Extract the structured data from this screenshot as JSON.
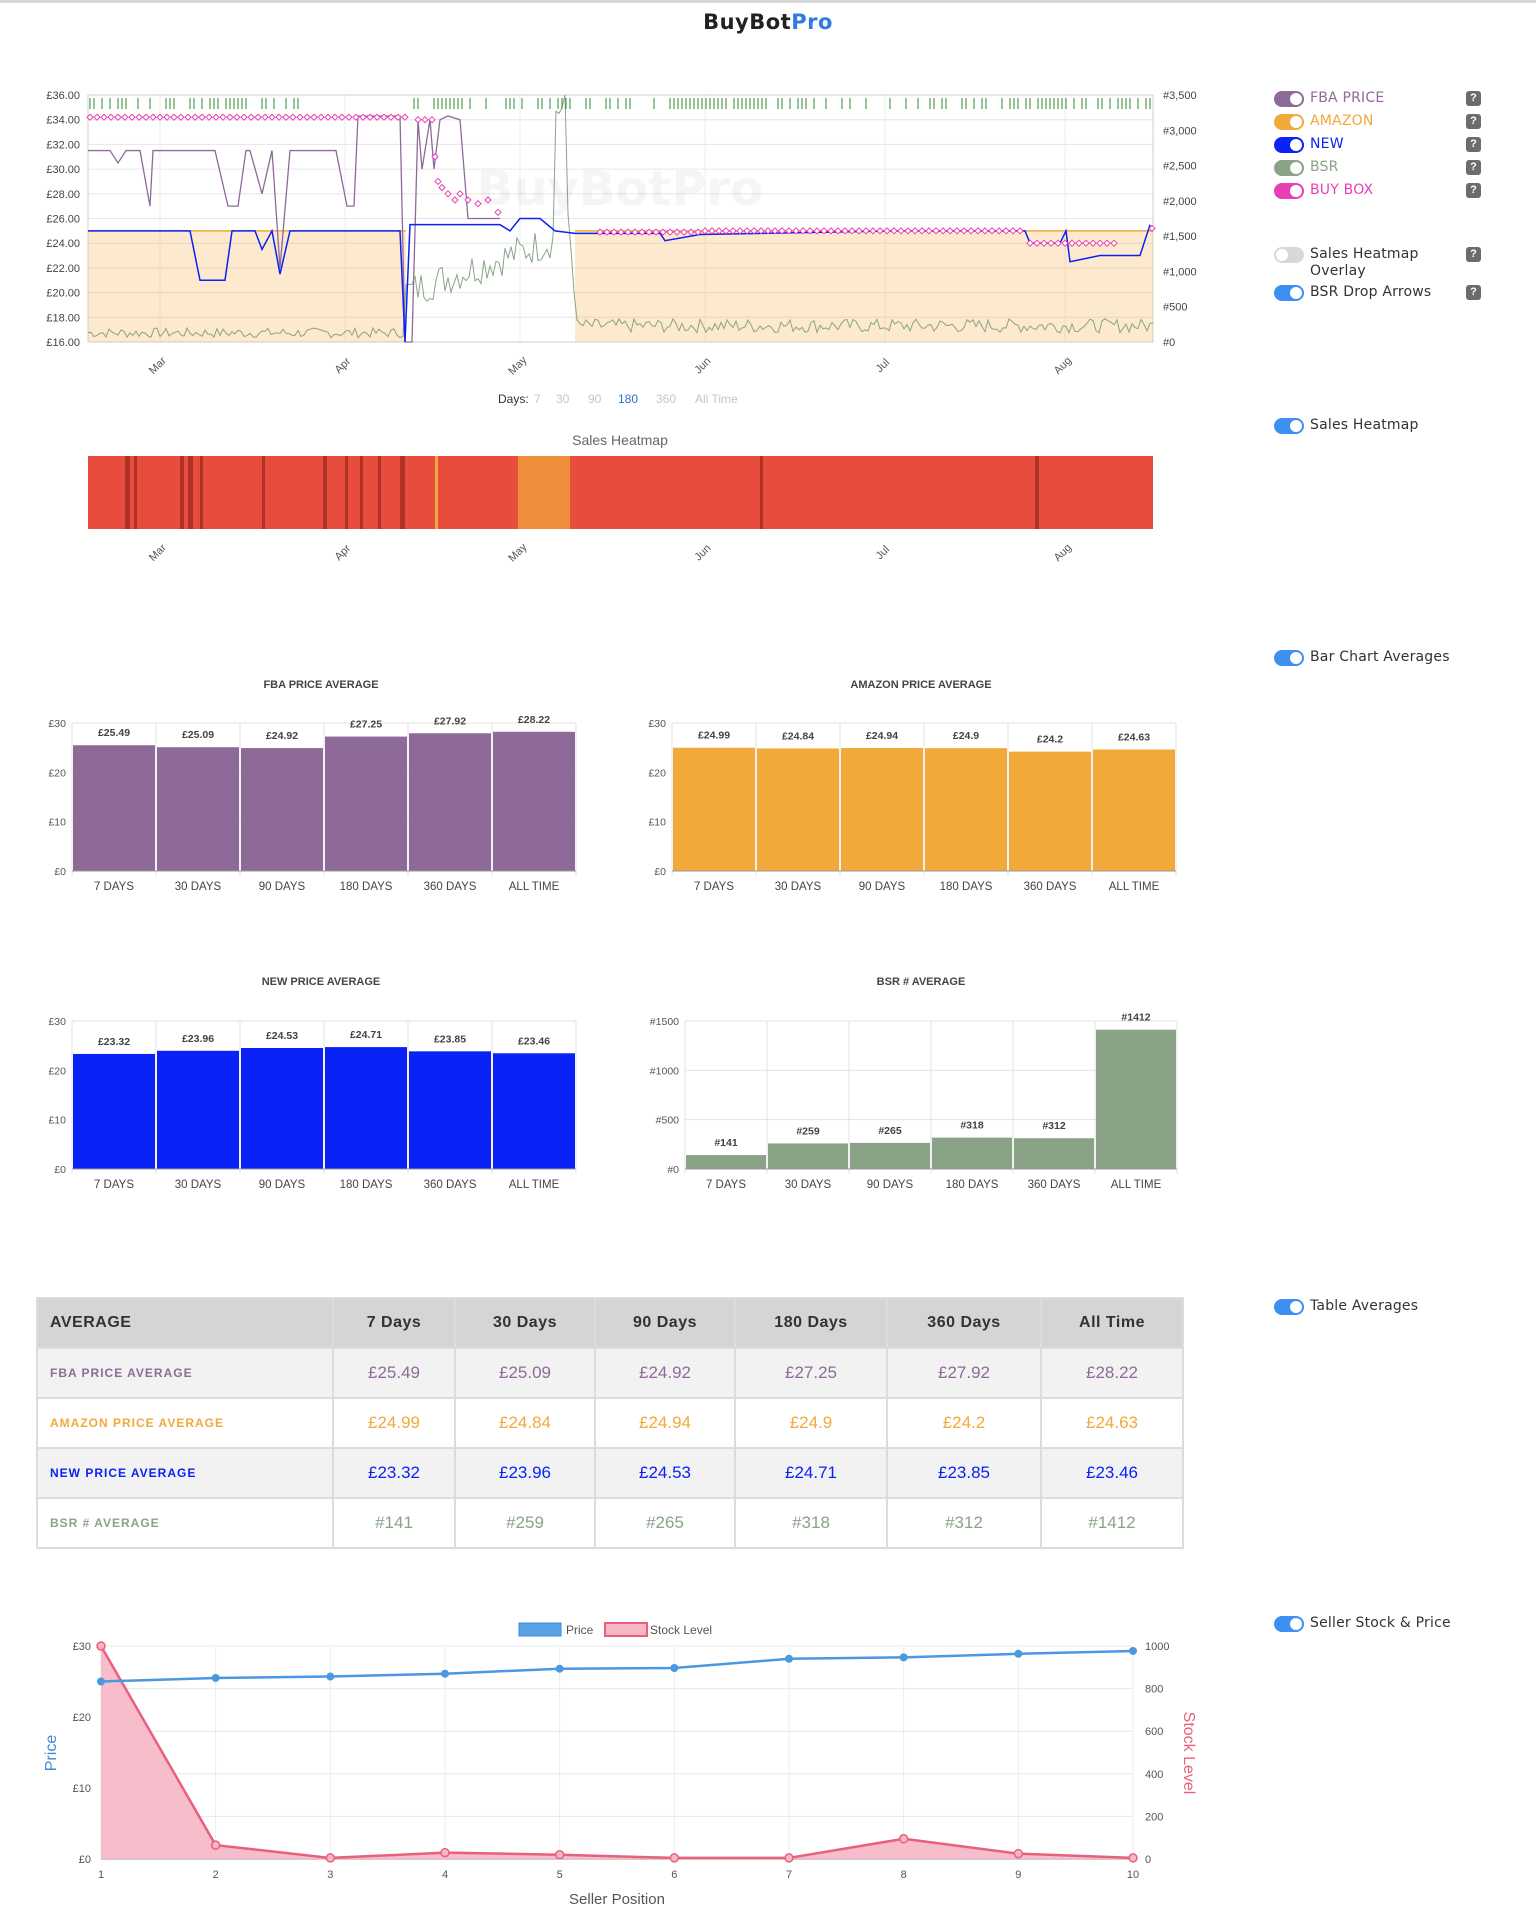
{
  "logo": {
    "part1": "BuyBot",
    "part2": "Pro",
    "color1": "#222222",
    "color2": "#2f7be0"
  },
  "colors": {
    "fba": "#8e6a98",
    "amazon": "#f2a93b",
    "new": "#0a22f5",
    "bsr": "#8aa387",
    "buybox": "#e93fb4",
    "toggle_on": "#3e8ff2"
  },
  "main_chart": {
    "watermark": "BuyBotPro",
    "left_ticks": [
      "£36.00",
      "£34.00",
      "£32.00",
      "£30.00",
      "£28.00",
      "£26.00",
      "£24.00",
      "£22.00",
      "£20.00",
      "£18.00",
      "£16.00"
    ],
    "right_ticks": [
      "#3,500",
      "#3,000",
      "#2,500",
      "#2,000",
      "#1,500",
      "#1,000",
      "#500",
      "#0"
    ],
    "months": [
      "Mar",
      "Apr",
      "May",
      "Jun",
      "Jul",
      "Aug"
    ],
    "days_label": "Days:",
    "day_options": [
      "7",
      "30",
      "90",
      "180",
      "360",
      "All Time"
    ],
    "selected_days": "180"
  },
  "heatmap": {
    "title": "Sales Heatmap",
    "months": [
      "Mar",
      "Apr",
      "May",
      "Jun",
      "Jul",
      "Aug"
    ]
  },
  "side_toggles": {
    "fba": {
      "label": "FBA PRICE",
      "on": true
    },
    "amazon": {
      "label": "AMAZON",
      "on": true
    },
    "new": {
      "label": "NEW",
      "on": true
    },
    "bsr": {
      "label": "BSR",
      "on": true
    },
    "buybox": {
      "label": "BUY BOX",
      "on": true
    },
    "heat_overlay": {
      "label": "Sales Heatmap Overlay",
      "on": false
    },
    "bsr_arrows": {
      "label": "BSR Drop Arrows",
      "on": true
    },
    "sales_heatmap": {
      "label": "Sales Heatmap",
      "on": true
    },
    "bar_avgs": {
      "label": "Bar Chart Averages",
      "on": true
    },
    "table_avgs": {
      "label": "Table Averages",
      "on": true
    },
    "seller_stock": {
      "label": "Seller Stock & Price",
      "on": true
    },
    "help": "?"
  },
  "chart_data": [
    {
      "type": "bar",
      "title": "FBA PRICE AVERAGE",
      "categories": [
        "7 DAYS",
        "30 DAYS",
        "90 DAYS",
        "180 DAYS",
        "360 DAYS",
        "ALL TIME"
      ],
      "values": [
        25.49,
        25.09,
        24.92,
        27.25,
        27.92,
        28.22
      ],
      "labels": [
        "£25.49",
        "£25.09",
        "£24.92",
        "£27.25",
        "£27.92",
        "£28.22"
      ],
      "yticks": [
        "£30",
        "£20",
        "£10",
        "£0"
      ],
      "ylim": [
        0,
        30
      ],
      "color": "#8e6a98"
    },
    {
      "type": "bar",
      "title": "AMAZON PRICE AVERAGE",
      "categories": [
        "7 DAYS",
        "30 DAYS",
        "90 DAYS",
        "180 DAYS",
        "360 DAYS",
        "ALL TIME"
      ],
      "values": [
        24.99,
        24.84,
        24.94,
        24.9,
        24.2,
        24.63
      ],
      "labels": [
        "£24.99",
        "£24.84",
        "£24.94",
        "£24.9",
        "£24.2",
        "£24.63"
      ],
      "yticks": [
        "£30",
        "£20",
        "£10",
        "£0"
      ],
      "ylim": [
        0,
        30
      ],
      "color": "#f2a93b"
    },
    {
      "type": "bar",
      "title": "NEW PRICE AVERAGE",
      "categories": [
        "7 DAYS",
        "30 DAYS",
        "90 DAYS",
        "180 DAYS",
        "360 DAYS",
        "ALL TIME"
      ],
      "values": [
        23.32,
        23.96,
        24.53,
        24.71,
        23.85,
        23.46
      ],
      "labels": [
        "£23.32",
        "£23.96",
        "£24.53",
        "£24.71",
        "£23.85",
        "£23.46"
      ],
      "yticks": [
        "£30",
        "£20",
        "£10",
        "£0"
      ],
      "ylim": [
        0,
        30
      ],
      "color": "#0a22f5"
    },
    {
      "type": "bar",
      "title": "BSR # AVERAGE",
      "categories": [
        "7 DAYS",
        "30 DAYS",
        "90 DAYS",
        "180 DAYS",
        "360 DAYS",
        "ALL TIME"
      ],
      "values": [
        141,
        259,
        265,
        318,
        312,
        1412
      ],
      "labels": [
        "#141",
        "#259",
        "#265",
        "#318",
        "#312",
        "#1412"
      ],
      "yticks": [
        "#1500",
        "#1000",
        "#500",
        "#0"
      ],
      "ylim": [
        0,
        1500
      ],
      "color": "#8aa387"
    },
    {
      "type": "line",
      "legend": [
        "Price",
        "Stock Level"
      ],
      "xlabel": "Seller Position",
      "ylabel": "Price",
      "y2label": "Stock Level",
      "x": [
        1,
        2,
        3,
        4,
        5,
        6,
        7,
        8,
        9,
        10
      ],
      "price": [
        25.0,
        25.5,
        25.7,
        26.1,
        26.8,
        26.9,
        28.2,
        28.4,
        28.9,
        29.3
      ],
      "stock": [
        1000,
        65,
        5,
        30,
        20,
        5,
        5,
        95,
        25,
        5
      ],
      "yticks": [
        "£30",
        "£20",
        "£10",
        "£0"
      ],
      "ylim": [
        0,
        30
      ],
      "y2ticks": [
        "1000",
        "800",
        "600",
        "400",
        "200",
        "0"
      ],
      "y2lim": [
        0,
        1000
      ]
    }
  ],
  "table": {
    "headers": [
      "AVERAGE",
      "7 Days",
      "30 Days",
      "90 Days",
      "180 Days",
      "360 Days",
      "All Time"
    ],
    "rows": [
      {
        "label": "FBA PRICE AVERAGE",
        "values": [
          "£25.49",
          "£25.09",
          "£24.92",
          "£27.25",
          "£27.92",
          "£28.22"
        ]
      },
      {
        "label": "AMAZON PRICE AVERAGE",
        "values": [
          "£24.99",
          "£24.84",
          "£24.94",
          "£24.9",
          "£24.2",
          "£24.63"
        ]
      },
      {
        "label": "NEW PRICE AVERAGE",
        "values": [
          "£23.32",
          "£23.96",
          "£24.53",
          "£24.71",
          "£23.85",
          "£23.46"
        ]
      },
      {
        "label": "BSR # AVERAGE",
        "values": [
          "#141",
          "#259",
          "#265",
          "#318",
          "#312",
          "#1412"
        ]
      }
    ]
  }
}
